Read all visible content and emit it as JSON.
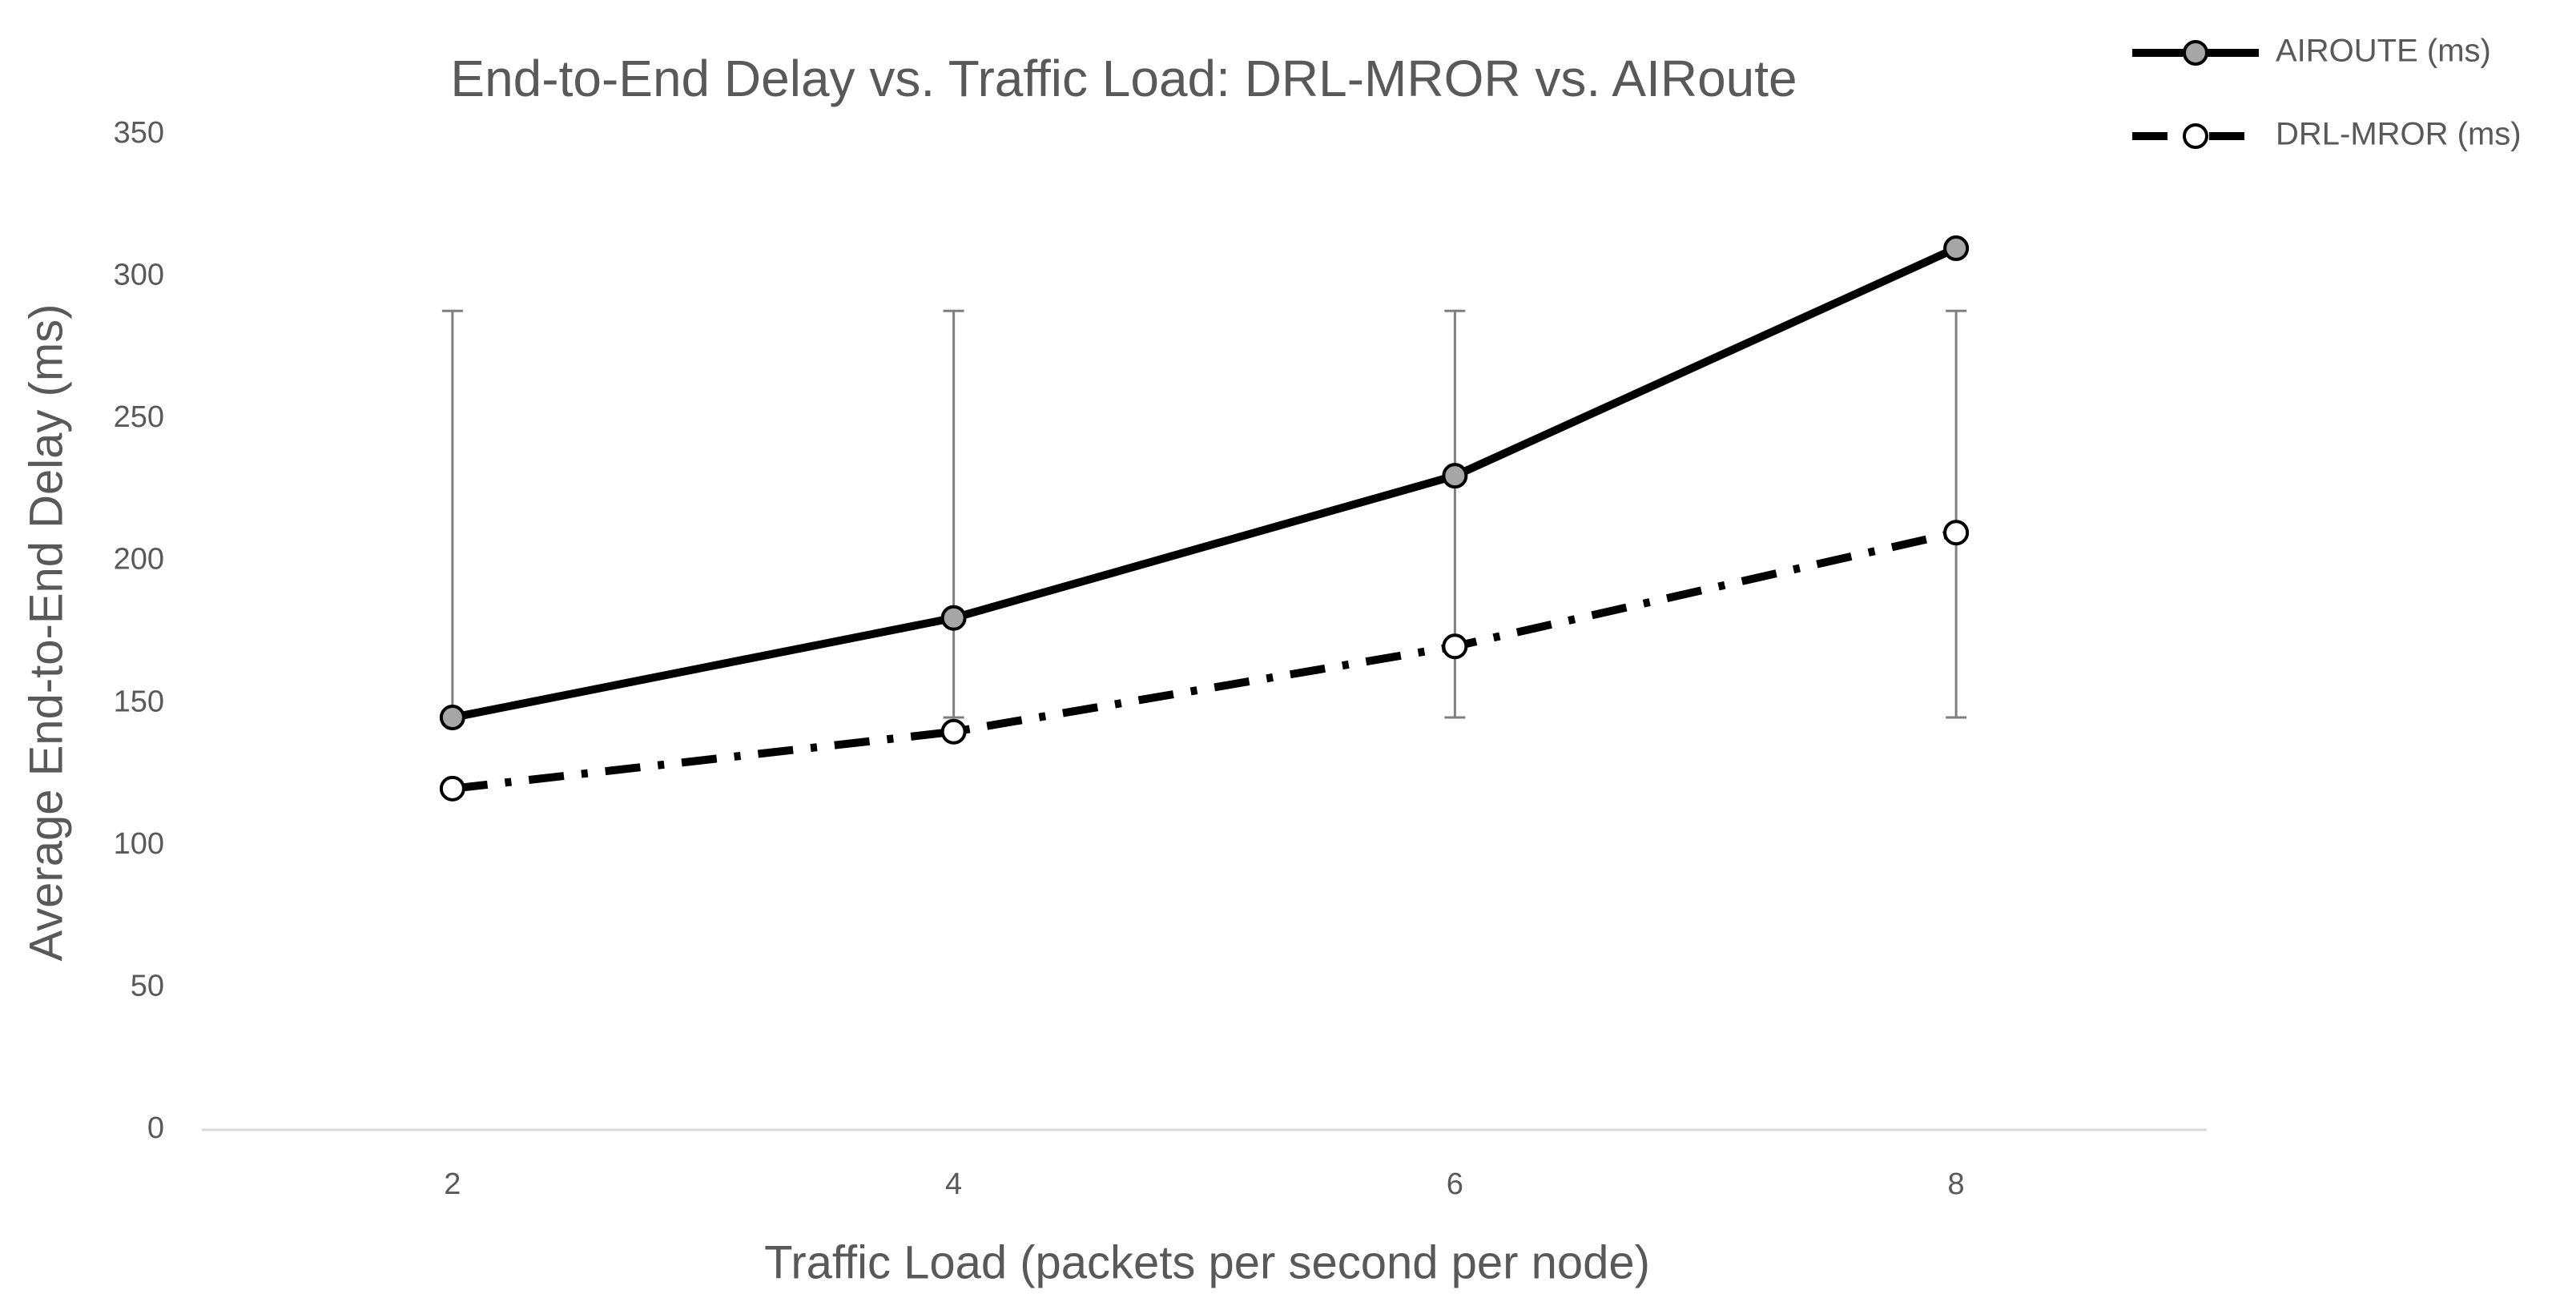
{
  "chart_data": {
    "type": "line",
    "title": "End-to-End Delay vs. Traffic Load: DRL-MROR vs. AIRoute",
    "x_label": "Traffic Load (packets per second per node)",
    "y_label": "Average End-to-End Delay (ms)",
    "categories": [
      "2",
      "4",
      "6",
      "8"
    ],
    "series": [
      {
        "name": "AIROUTE (ms)",
        "color": "#000000",
        "marker_fill": "#a6a6a6",
        "dash": "solid",
        "values": [
          145,
          180,
          230,
          310
        ]
      },
      {
        "name": "DRL-MROR (ms)",
        "color": "#000000",
        "marker_fill": "#ffffff",
        "dash": "dashdot",
        "values": [
          120,
          140,
          170,
          210
        ]
      }
    ],
    "range_bars": {
      "color": "#7f7f7f",
      "low": [
        145,
        145,
        145,
        145
      ],
      "high": [
        288,
        288,
        288,
        288
      ]
    },
    "ylim": [
      0,
      350
    ],
    "yticks": [
      0,
      50,
      100,
      150,
      200,
      250,
      300,
      350
    ],
    "grid": false,
    "legend": "top-right"
  }
}
